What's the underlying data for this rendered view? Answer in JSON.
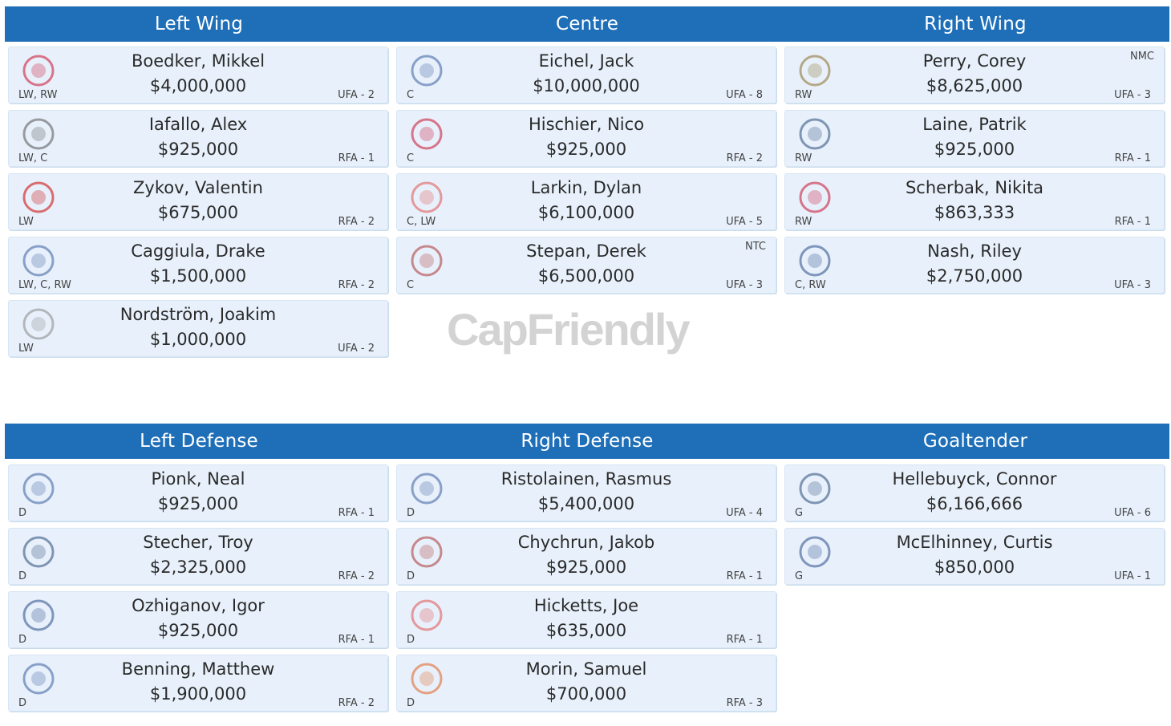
{
  "forwards_header": {
    "left_wing": "Left Wing",
    "centre": "Centre",
    "right_wing": "Right Wing"
  },
  "defense_header": {
    "left_defense": "Left Defense",
    "right_defense": "Right Defense",
    "goaltender": "Goaltender"
  },
  "watermark": "CapFriendly",
  "left_wing": [
    {
      "name": "Boedker, Mikkel",
      "salary": "$4,000,000",
      "pos": "LW, RW",
      "status": "UFA - 2",
      "clause": "",
      "team_icon": "senators-logo-icon"
    },
    {
      "name": "Iafallo, Alex",
      "salary": "$925,000",
      "pos": "LW, C",
      "status": "RFA - 1",
      "clause": "",
      "team_icon": "kings-logo-icon"
    },
    {
      "name": "Zykov, Valentin",
      "salary": "$675,000",
      "pos": "LW",
      "status": "RFA - 2",
      "clause": "",
      "team_icon": "hurricanes-logo-icon"
    },
    {
      "name": "Caggiula, Drake",
      "salary": "$1,500,000",
      "pos": "LW, C, RW",
      "status": "RFA - 2",
      "clause": "",
      "team_icon": "oilers-logo-icon"
    },
    {
      "name": "Nordström, Joakim",
      "salary": "$1,000,000",
      "pos": "LW",
      "status": "UFA - 2",
      "clause": "",
      "team_icon": "bruins-logo-icon"
    }
  ],
  "centre": [
    {
      "name": "Eichel, Jack",
      "salary": "$10,000,000",
      "pos": "C",
      "status": "UFA - 8",
      "clause": "",
      "team_icon": "sabres-logo-icon"
    },
    {
      "name": "Hischier, Nico",
      "salary": "$925,000",
      "pos": "C",
      "status": "RFA - 2",
      "clause": "",
      "team_icon": "devils-logo-icon"
    },
    {
      "name": "Larkin, Dylan",
      "salary": "$6,100,000",
      "pos": "C, LW",
      "status": "UFA - 5",
      "clause": "",
      "team_icon": "red-wings-logo-icon"
    },
    {
      "name": "Stepan, Derek",
      "salary": "$6,500,000",
      "pos": "C",
      "status": "UFA - 3",
      "clause": "NTC",
      "team_icon": "coyotes-logo-icon"
    }
  ],
  "right_wing": [
    {
      "name": "Perry, Corey",
      "salary": "$8,625,000",
      "pos": "RW",
      "status": "UFA - 3",
      "clause": "NMC",
      "team_icon": "ducks-logo-icon"
    },
    {
      "name": "Laine, Patrik",
      "salary": "$925,000",
      "pos": "RW",
      "status": "RFA - 1",
      "clause": "",
      "team_icon": "jets-logo-icon"
    },
    {
      "name": "Scherbak, Nikita",
      "salary": "$863,333",
      "pos": "RW",
      "status": "RFA - 1",
      "clause": "",
      "team_icon": "canadiens-logo-icon"
    },
    {
      "name": "Nash, Riley",
      "salary": "$2,750,000",
      "pos": "C, RW",
      "status": "UFA - 3",
      "clause": "",
      "team_icon": "blue-jackets-logo-icon"
    }
  ],
  "left_defense": [
    {
      "name": "Pionk, Neal",
      "salary": "$925,000",
      "pos": "D",
      "status": "RFA - 1",
      "clause": "",
      "team_icon": "rangers-logo-icon"
    },
    {
      "name": "Stecher, Troy",
      "salary": "$2,325,000",
      "pos": "D",
      "status": "RFA - 2",
      "clause": "",
      "team_icon": "canucks-logo-icon"
    },
    {
      "name": "Ozhiganov, Igor",
      "salary": "$925,000",
      "pos": "D",
      "status": "RFA - 1",
      "clause": "",
      "team_icon": "maple-leafs-logo-icon"
    },
    {
      "name": "Benning, Matthew",
      "salary": "$1,900,000",
      "pos": "D",
      "status": "RFA - 2",
      "clause": "",
      "team_icon": "oilers-logo-icon"
    }
  ],
  "right_defense": [
    {
      "name": "Ristolainen, Rasmus",
      "salary": "$5,400,000",
      "pos": "D",
      "status": "UFA - 4",
      "clause": "",
      "team_icon": "sabres-logo-icon"
    },
    {
      "name": "Chychrun, Jakob",
      "salary": "$925,000",
      "pos": "D",
      "status": "RFA - 1",
      "clause": "",
      "team_icon": "coyotes-logo-icon"
    },
    {
      "name": "Hicketts, Joe",
      "salary": "$635,000",
      "pos": "D",
      "status": "RFA - 1",
      "clause": "",
      "team_icon": "red-wings-logo-icon"
    },
    {
      "name": "Morin, Samuel",
      "salary": "$700,000",
      "pos": "D",
      "status": "RFA - 3",
      "clause": "",
      "team_icon": "flyers-logo-icon"
    }
  ],
  "goaltender": [
    {
      "name": "Hellebuyck, Connor",
      "salary": "$6,166,666",
      "pos": "G",
      "status": "UFA - 6",
      "clause": "",
      "team_icon": "jets-logo-icon"
    },
    {
      "name": "McElhinney, Curtis",
      "salary": "$850,000",
      "pos": "G",
      "status": "UFA - 1",
      "clause": "",
      "team_icon": "maple-leafs-logo-icon"
    }
  ],
  "colors": {
    "header": "#1f6fb8",
    "card": "#e8f1fb",
    "watermark": "#d3d3d3"
  }
}
